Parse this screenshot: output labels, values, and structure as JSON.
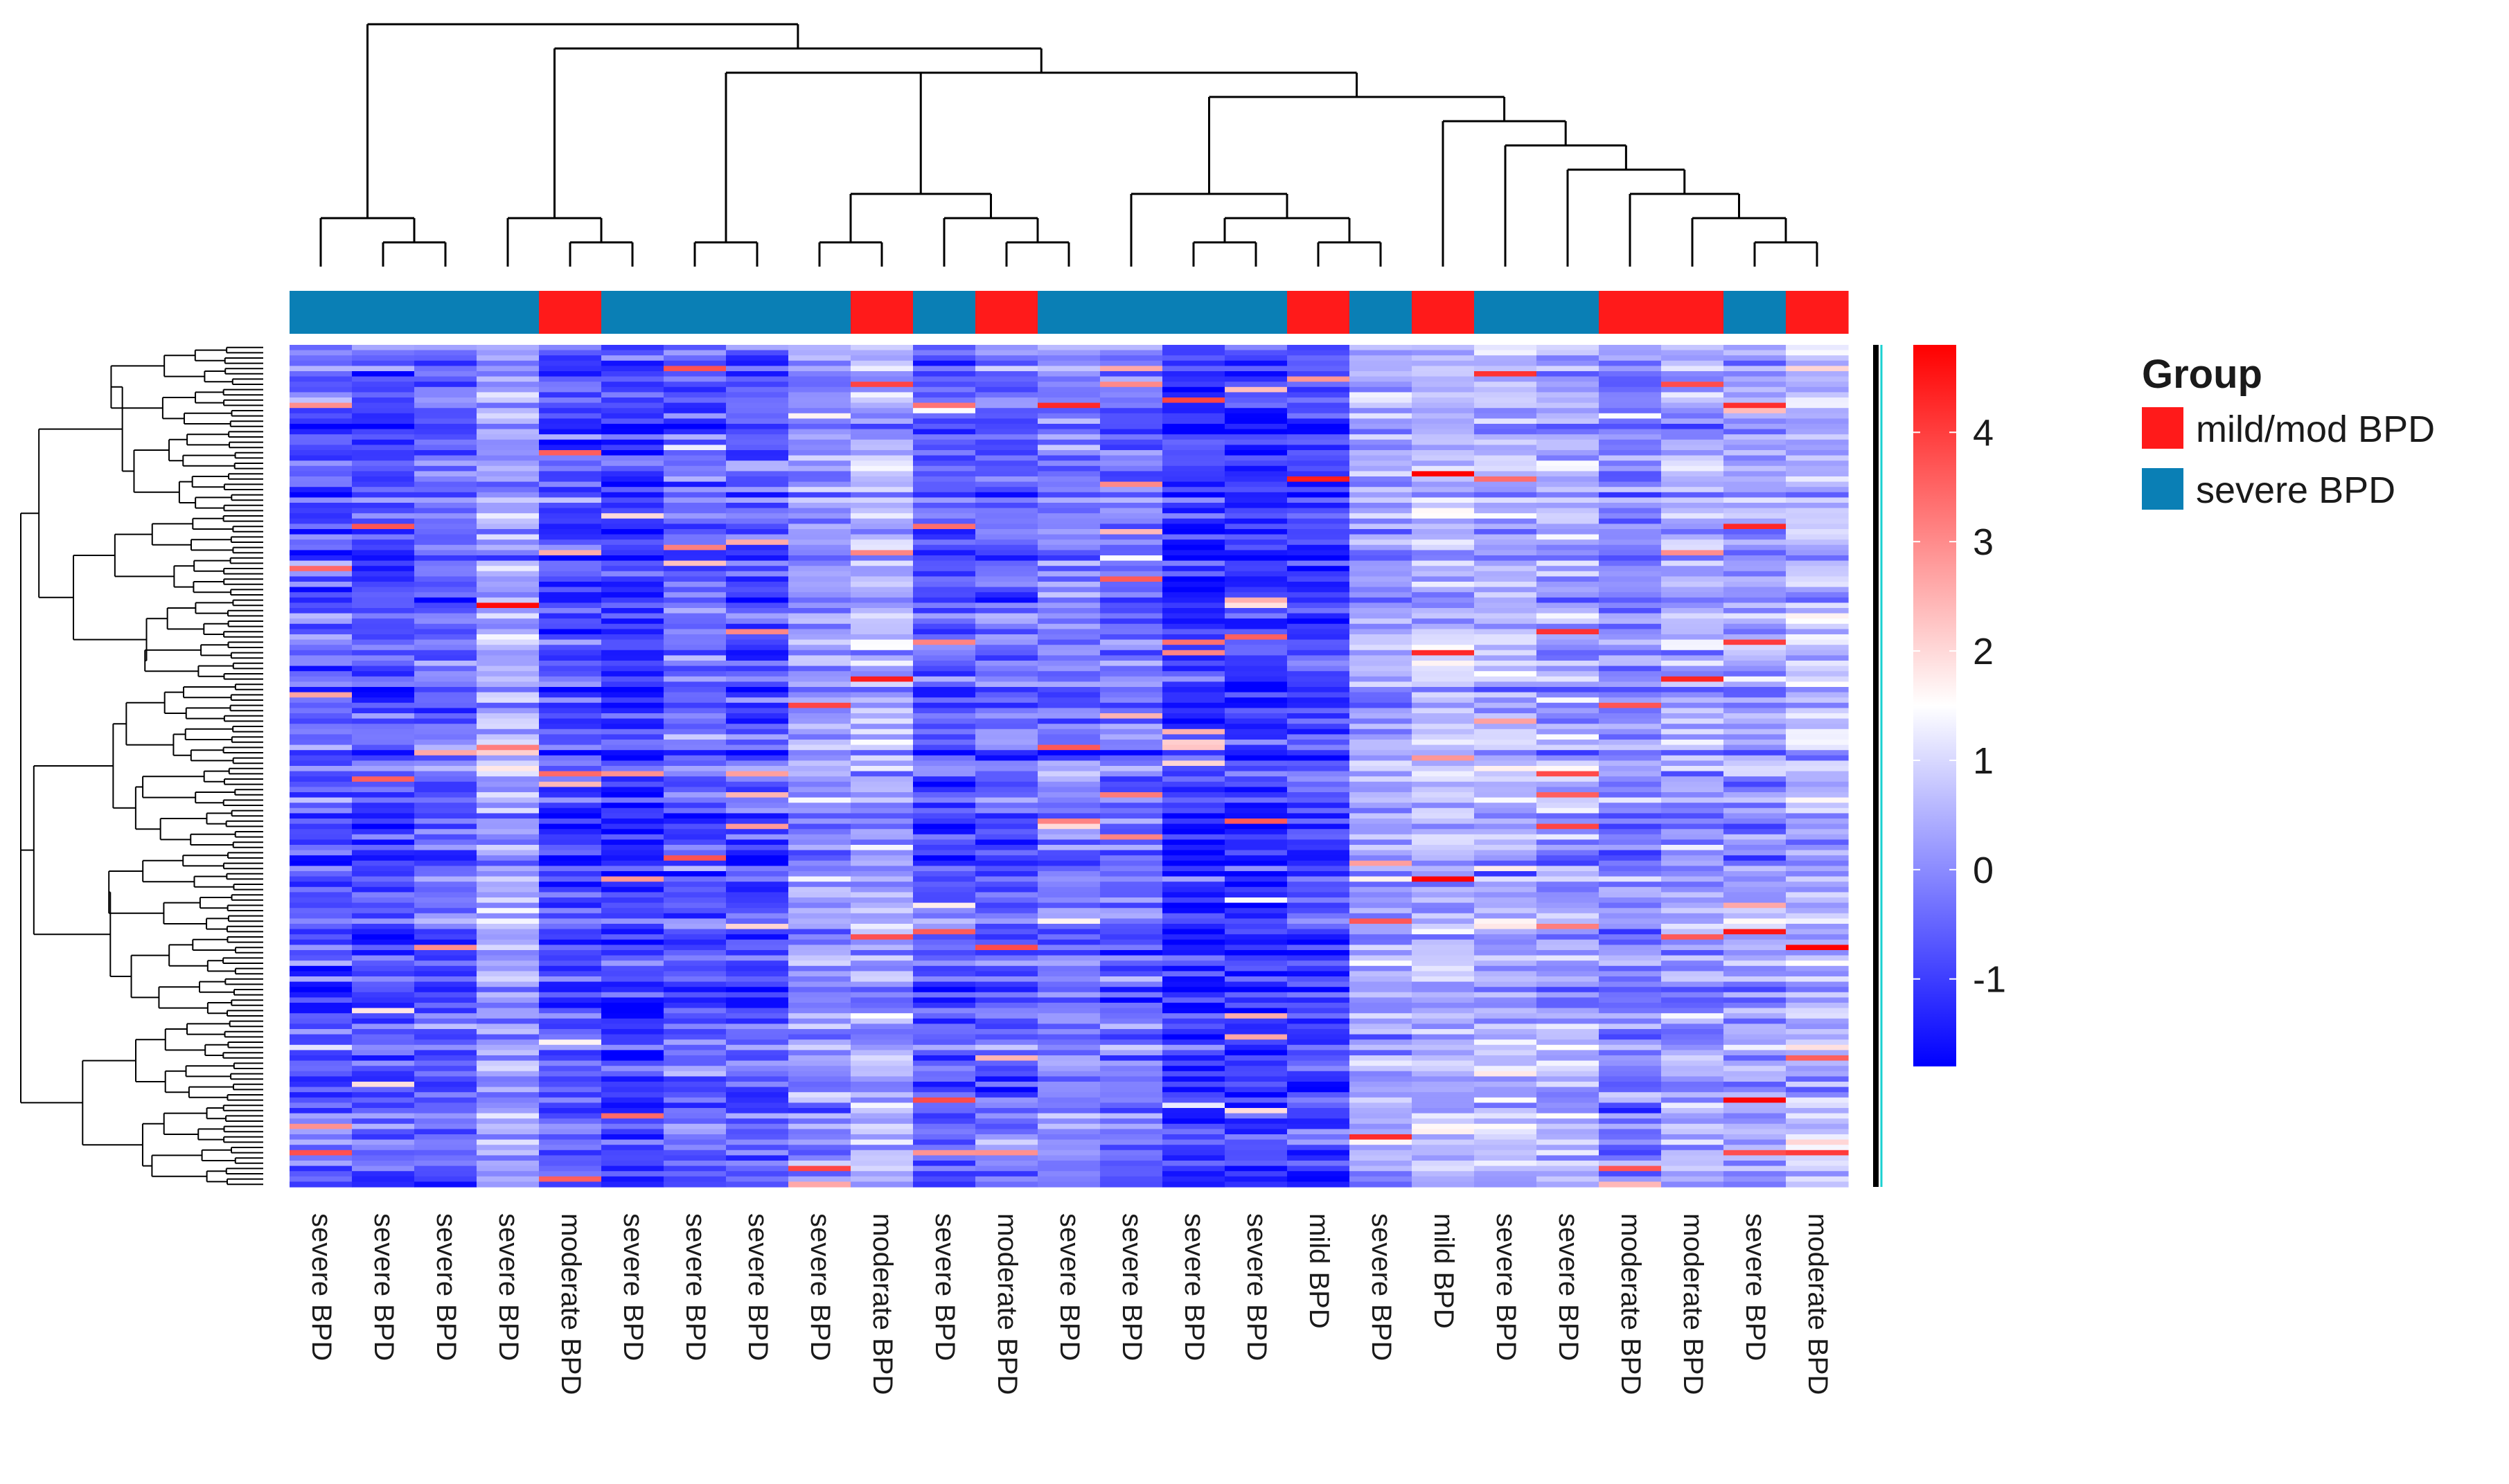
{
  "chart_data": {
    "type": "heatmap",
    "title": "",
    "xlabel": "",
    "ylabel": "",
    "columns": [
      "severe BPD",
      "severe BPD",
      "severe BPD",
      "severe BPD",
      "moderate BPD",
      "severe BPD",
      "severe BPD",
      "severe BPD",
      "severe BPD",
      "moderate BPD",
      "severe BPD",
      "moderate BPD",
      "severe BPD",
      "severe BPD",
      "severe BPD",
      "severe BPD",
      "mild BPD",
      "severe BPD",
      "mild BPD",
      "severe BPD",
      "severe BPD",
      "moderate BPD",
      "moderate BPD",
      "severe BPD",
      "moderate BPD"
    ],
    "column_groups": [
      "severe BPD",
      "severe BPD",
      "severe BPD",
      "severe BPD",
      "mild/mod BPD",
      "severe BPD",
      "severe BPD",
      "severe BPD",
      "severe BPD",
      "mild/mod BPD",
      "severe BPD",
      "mild/mod BPD",
      "severe BPD",
      "severe BPD",
      "severe BPD",
      "severe BPD",
      "mild/mod BPD",
      "severe BPD",
      "mild/mod BPD",
      "severe BPD",
      "severe BPD",
      "mild/mod BPD",
      "mild/mod BPD",
      "severe BPD",
      "mild/mod BPD"
    ],
    "column_mean_values": [
      -0.6,
      -0.8,
      -0.6,
      0.3,
      -0.8,
      -1.1,
      -0.6,
      -0.7,
      0.0,
      0.4,
      -0.7,
      -0.5,
      -0.2,
      -0.4,
      -1.2,
      -1.2,
      -0.9,
      0.3,
      0.6,
      0.5,
      0.4,
      -0.2,
      0.3,
      0.2,
      0.6
    ],
    "row_count": 160,
    "color_scale": {
      "min": -1.8,
      "max": 4.8,
      "ticks": [
        -1,
        0,
        1,
        2,
        3,
        4
      ],
      "low_color": "#0000ff",
      "mid_color": "#ffffff",
      "high_color": "#ff0000",
      "midpoint": 1.5
    },
    "legend": {
      "title": "Group",
      "position": "top-right",
      "entries": [
        {
          "label": "mild/mod BPD",
          "color": "#ff1a1a"
        },
        {
          "label": "severe BPD",
          "color": "#0a7fb5"
        }
      ]
    },
    "column_dendrogram": "((1,(2,3)),((4,(5,6)),((7,8),((9,10),(11,(12,13))),((14,((15,16),(17,18))),(19,(20,(21,(22,(23,(24,25))))))))))",
    "row_dendrogram": "shown (left)"
  }
}
